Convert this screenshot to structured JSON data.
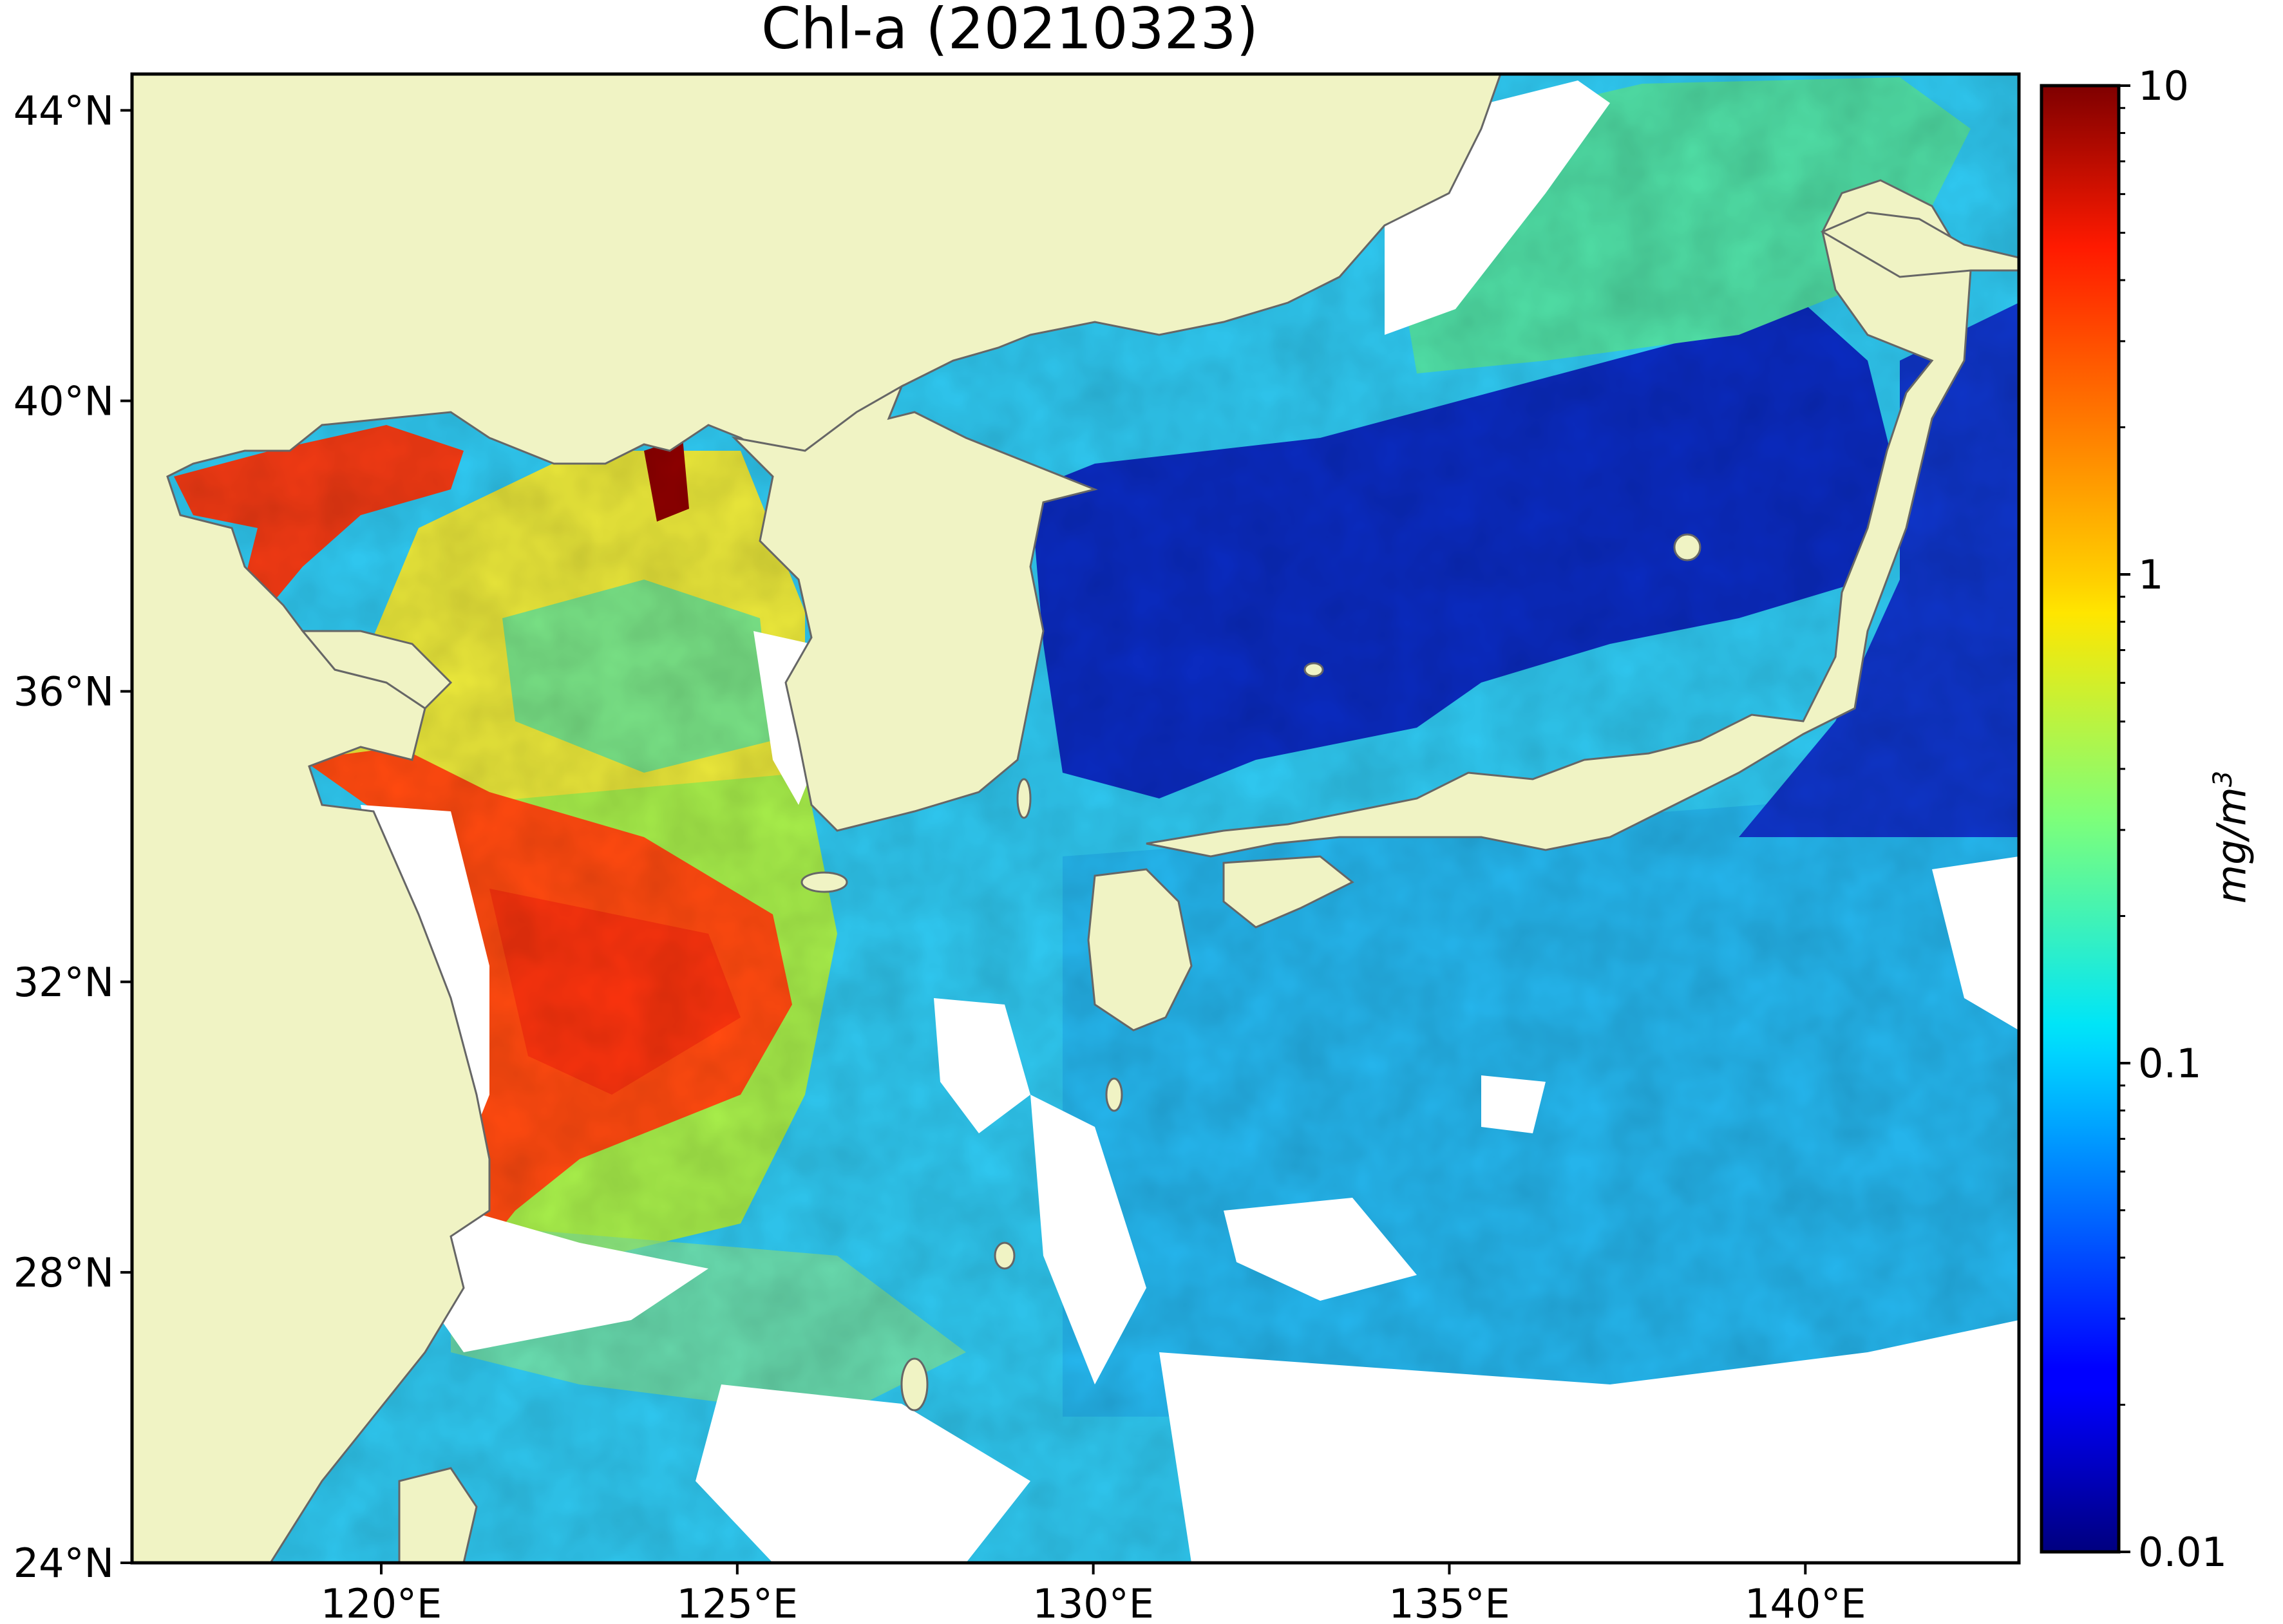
{
  "title": "Chl-a (20210323)",
  "map": {
    "projection": "PlateCarree",
    "lon_range": [
      116.5,
      143
    ],
    "lat_range": [
      24,
      44.5
    ],
    "land_color": "#f0f3c4",
    "coast_color": "#666666",
    "nodata_color": "#ffffff",
    "x_ticks": [
      {
        "value": 120,
        "label": "120°E"
      },
      {
        "value": 125,
        "label": "125°E"
      },
      {
        "value": 130,
        "label": "130°E"
      },
      {
        "value": 135,
        "label": "135°E"
      },
      {
        "value": 140,
        "label": "140°E"
      }
    ],
    "y_ticks": [
      {
        "value": 44,
        "label": "44°N"
      },
      {
        "value": 40,
        "label": "40°N"
      },
      {
        "value": 36,
        "label": "36°N"
      },
      {
        "value": 32,
        "label": "32°N"
      },
      {
        "value": 28,
        "label": "28°N"
      },
      {
        "value": 24,
        "label": "24°N"
      }
    ]
  },
  "colorbar": {
    "colormap": "jet",
    "scale": "log",
    "range": [
      0.01,
      10
    ],
    "ticks": [
      {
        "value": 10,
        "label": "10"
      },
      {
        "value": 1,
        "label": "1"
      },
      {
        "value": 0.1,
        "label": "0.1"
      },
      {
        "value": 0.01,
        "label": "0.01"
      }
    ],
    "unit": "mg/m",
    "unit_exp": "3"
  }
}
